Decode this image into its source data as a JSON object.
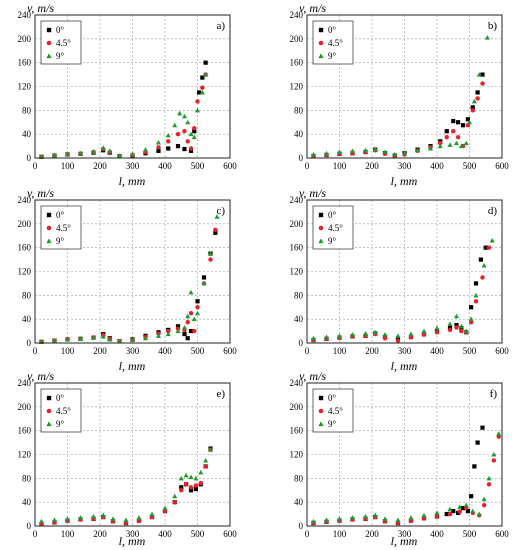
{
  "figure": {
    "panels": [
      {
        "letter": "a)",
        "ylabel": "v, m/s",
        "xlabel": "l, mm"
      },
      {
        "letter": "b)",
        "ylabel": "v, m/s",
        "xlabel": "l, mm"
      },
      {
        "letter": "c)",
        "ylabel": "v, m/s",
        "xlabel": "l, mm"
      },
      {
        "letter": "d)",
        "ylabel": "v, m/s",
        "xlabel": "l, mm"
      },
      {
        "letter": "e)",
        "ylabel": "v, m/s",
        "xlabel": "l, mm"
      },
      {
        "letter": "f)",
        "ylabel": "v, m/s",
        "xlabel": "l, mm"
      }
    ]
  },
  "chart_data": [
    {
      "type": "scatter",
      "panel": "a)",
      "xlabel": "l, mm",
      "ylabel": "v, m/s",
      "xlim": [
        0,
        600
      ],
      "ylim": [
        0,
        240
      ],
      "xticks": [
        0,
        100,
        200,
        300,
        400,
        500,
        600
      ],
      "yticks": [
        0,
        40,
        80,
        120,
        160,
        200,
        240
      ],
      "grid": true,
      "legend_position": "top-left",
      "series": [
        {
          "name": "0°",
          "color": "#000000",
          "marker": "square",
          "x": [
            20,
            60,
            100,
            140,
            180,
            210,
            230,
            260,
            300,
            340,
            380,
            410,
            440,
            460,
            480,
            490,
            505,
            515,
            525
          ],
          "y": [
            2,
            4,
            6,
            7,
            9,
            13,
            9,
            3,
            4,
            8,
            12,
            16,
            20,
            15,
            12,
            45,
            110,
            135,
            160
          ]
        },
        {
          "name": "4.5°",
          "color": "#e8202a",
          "marker": "circle",
          "x": [
            20,
            60,
            100,
            140,
            180,
            210,
            230,
            260,
            300,
            340,
            380,
            410,
            440,
            460,
            470,
            480,
            490,
            500,
            515,
            525
          ],
          "y": [
            2,
            4,
            6,
            7,
            10,
            15,
            10,
            3,
            5,
            10,
            18,
            28,
            40,
            45,
            28,
            16,
            50,
            95,
            118,
            140
          ]
        },
        {
          "name": "9°",
          "color": "#1e9a2e",
          "marker": "triangle",
          "x": [
            20,
            60,
            100,
            140,
            180,
            210,
            230,
            260,
            300,
            340,
            380,
            410,
            430,
            445,
            460,
            470,
            480,
            490,
            500,
            515,
            525
          ],
          "y": [
            2,
            5,
            7,
            8,
            11,
            17,
            12,
            4,
            7,
            14,
            26,
            38,
            55,
            75,
            70,
            60,
            40,
            35,
            80,
            110,
            140
          ]
        }
      ]
    },
    {
      "type": "scatter",
      "panel": "b)",
      "xlabel": "l, mm",
      "ylabel": "v, m/s",
      "xlim": [
        0,
        600
      ],
      "ylim": [
        0,
        240
      ],
      "xticks": [
        0,
        100,
        200,
        300,
        400,
        500,
        600
      ],
      "yticks": [
        0,
        40,
        80,
        120,
        160,
        200,
        240
      ],
      "grid": true,
      "legend_position": "top-left",
      "series": [
        {
          "name": "0°",
          "color": "#000000",
          "marker": "square",
          "x": [
            20,
            60,
            100,
            140,
            180,
            210,
            240,
            270,
            300,
            340,
            380,
            410,
            430,
            450,
            465,
            480,
            495,
            510,
            525,
            540
          ],
          "y": [
            3,
            5,
            7,
            8,
            10,
            14,
            8,
            4,
            8,
            14,
            20,
            28,
            45,
            62,
            60,
            55,
            65,
            85,
            110,
            140
          ]
        },
        {
          "name": "4.5°",
          "color": "#e8202a",
          "marker": "circle",
          "x": [
            20,
            60,
            100,
            140,
            180,
            210,
            240,
            270,
            300,
            340,
            380,
            410,
            430,
            450,
            465,
            480,
            495,
            510,
            525,
            540
          ],
          "y": [
            3,
            5,
            7,
            8,
            10,
            13,
            7,
            3,
            6,
            12,
            18,
            25,
            35,
            45,
            35,
            20,
            55,
            80,
            100,
            125
          ]
        },
        {
          "name": "9°",
          "color": "#1e9a2e",
          "marker": "triangle",
          "x": [
            20,
            60,
            100,
            140,
            180,
            210,
            240,
            270,
            300,
            340,
            380,
            410,
            440,
            460,
            475,
            490,
            500,
            515,
            530,
            555
          ],
          "y": [
            6,
            8,
            10,
            12,
            13,
            15,
            10,
            6,
            9,
            13,
            16,
            20,
            22,
            25,
            20,
            25,
            60,
            95,
            140,
            202
          ]
        }
      ]
    },
    {
      "type": "scatter",
      "panel": "c)",
      "xlabel": "l, mm",
      "ylabel": "v, m/s",
      "xlim": [
        0,
        600
      ],
      "ylim": [
        0,
        240
      ],
      "xticks": [
        0,
        100,
        200,
        300,
        400,
        500,
        600
      ],
      "yticks": [
        0,
        40,
        80,
        120,
        160,
        200,
        240
      ],
      "grid": true,
      "legend_position": "top-left",
      "series": [
        {
          "name": "0°",
          "color": "#000000",
          "marker": "square",
          "x": [
            20,
            60,
            100,
            140,
            180,
            210,
            230,
            260,
            300,
            340,
            380,
            410,
            440,
            460,
            470,
            480,
            500,
            520,
            540,
            555
          ],
          "y": [
            2,
            4,
            6,
            7,
            9,
            15,
            8,
            3,
            6,
            12,
            18,
            22,
            28,
            15,
            8,
            20,
            70,
            110,
            150,
            185
          ]
        },
        {
          "name": "4.5°",
          "color": "#e8202a",
          "marker": "circle",
          "x": [
            20,
            60,
            100,
            140,
            180,
            210,
            230,
            260,
            300,
            340,
            380,
            410,
            440,
            460,
            470,
            480,
            490,
            500,
            520,
            540,
            555
          ],
          "y": [
            2,
            4,
            6,
            7,
            9,
            13,
            7,
            3,
            5,
            10,
            16,
            20,
            24,
            22,
            35,
            50,
            20,
            60,
            100,
            140,
            190
          ]
        },
        {
          "name": "9°",
          "color": "#1e9a2e",
          "marker": "triangle",
          "x": [
            20,
            60,
            100,
            140,
            180,
            210,
            230,
            260,
            300,
            340,
            380,
            410,
            440,
            460,
            470,
            480,
            490,
            500,
            520,
            540,
            560
          ],
          "y": [
            2,
            4,
            6,
            7,
            9,
            11,
            6,
            3,
            5,
            8,
            12,
            15,
            20,
            26,
            45,
            85,
            40,
            50,
            100,
            150,
            212
          ]
        }
      ]
    },
    {
      "type": "scatter",
      "panel": "d)",
      "xlabel": "l, mm",
      "ylabel": "v, m/s",
      "xlim": [
        0,
        600
      ],
      "ylim": [
        0,
        240
      ],
      "xticks": [
        0,
        100,
        200,
        300,
        400,
        500,
        600
      ],
      "yticks": [
        0,
        40,
        80,
        120,
        160,
        200,
        240
      ],
      "grid": true,
      "legend_position": "top-left",
      "series": [
        {
          "name": "0°",
          "color": "#000000",
          "marker": "square",
          "x": [
            20,
            60,
            100,
            140,
            180,
            210,
            240,
            280,
            320,
            360,
            400,
            440,
            460,
            475,
            490,
            505,
            520,
            535,
            550
          ],
          "y": [
            5,
            7,
            9,
            11,
            12,
            16,
            10,
            6,
            10,
            15,
            20,
            25,
            30,
            25,
            18,
            60,
            100,
            140,
            160
          ]
        },
        {
          "name": "4.5°",
          "color": "#e8202a",
          "marker": "circle",
          "x": [
            20,
            60,
            100,
            140,
            180,
            210,
            240,
            280,
            320,
            360,
            400,
            440,
            460,
            475,
            490,
            505,
            520,
            540,
            560
          ],
          "y": [
            5,
            7,
            9,
            11,
            12,
            15,
            8,
            4,
            10,
            14,
            18,
            22,
            26,
            20,
            18,
            35,
            70,
            110,
            160
          ]
        },
        {
          "name": "9°",
          "color": "#1e9a2e",
          "marker": "triangle",
          "x": [
            20,
            60,
            100,
            140,
            180,
            210,
            240,
            280,
            320,
            360,
            400,
            440,
            460,
            475,
            490,
            505,
            520,
            545,
            570
          ],
          "y": [
            8,
            10,
            12,
            14,
            16,
            18,
            14,
            12,
            15,
            20,
            25,
            32,
            45,
            28,
            20,
            40,
            80,
            130,
            172
          ]
        }
      ]
    },
    {
      "type": "scatter",
      "panel": "e)",
      "xlabel": "l, mm",
      "ylabel": "v, m/s",
      "xlim": [
        0,
        600
      ],
      "ylim": [
        0,
        240
      ],
      "xticks": [
        0,
        100,
        200,
        300,
        400,
        500,
        600
      ],
      "yticks": [
        0,
        40,
        80,
        120,
        160,
        200,
        240
      ],
      "grid": true,
      "legend_position": "top-left",
      "series": [
        {
          "name": "0°",
          "color": "#000000",
          "marker": "square",
          "x": [
            20,
            60,
            100,
            140,
            180,
            210,
            240,
            280,
            320,
            360,
            400,
            430,
            450,
            465,
            480,
            495,
            510,
            525,
            540
          ],
          "y": [
            3,
            6,
            9,
            11,
            12,
            15,
            8,
            5,
            9,
            15,
            25,
            40,
            65,
            70,
            60,
            62,
            70,
            100,
            130
          ]
        },
        {
          "name": "4.5°",
          "color": "#e8202a",
          "marker": "circle",
          "x": [
            20,
            60,
            100,
            140,
            180,
            210,
            240,
            280,
            320,
            360,
            400,
            430,
            450,
            465,
            480,
            495,
            510,
            525,
            540
          ],
          "y": [
            3,
            6,
            9,
            11,
            12,
            15,
            8,
            5,
            9,
            15,
            25,
            40,
            60,
            70,
            65,
            68,
            72,
            100,
            128
          ]
        },
        {
          "name": "9°",
          "color": "#1e9a2e",
          "marker": "triangle",
          "x": [
            20,
            60,
            100,
            140,
            180,
            210,
            240,
            280,
            320,
            360,
            400,
            430,
            450,
            465,
            480,
            495,
            510,
            525,
            540
          ],
          "y": [
            8,
            10,
            12,
            14,
            16,
            18,
            12,
            10,
            14,
            20,
            30,
            50,
            80,
            85,
            82,
            80,
            90,
            110,
            128
          ]
        }
      ]
    },
    {
      "type": "scatter",
      "panel": "f)",
      "xlabel": "l, mm",
      "ylabel": "v, m/s",
      "xlim": [
        0,
        600
      ],
      "ylim": [
        0,
        240
      ],
      "xticks": [
        0,
        100,
        200,
        300,
        400,
        500,
        600
      ],
      "yticks": [
        0,
        40,
        80,
        120,
        160,
        200,
        240
      ],
      "grid": true,
      "legend_position": "top-left",
      "series": [
        {
          "name": "0°",
          "color": "#000000",
          "marker": "square",
          "x": [
            20,
            60,
            100,
            140,
            180,
            210,
            240,
            280,
            320,
            360,
            400,
            430,
            450,
            465,
            480,
            495,
            505,
            515,
            525,
            540
          ],
          "y": [
            5,
            7,
            9,
            11,
            12,
            15,
            8,
            5,
            9,
            13,
            16,
            20,
            25,
            22,
            30,
            25,
            50,
            100,
            140,
            165
          ]
        },
        {
          "name": "4.5°",
          "color": "#e8202a",
          "marker": "circle",
          "x": [
            20,
            60,
            100,
            140,
            180,
            210,
            240,
            280,
            320,
            360,
            400,
            440,
            470,
            490,
            510,
            530,
            545,
            560,
            575,
            590
          ],
          "y": [
            5,
            7,
            9,
            11,
            12,
            15,
            8,
            5,
            9,
            13,
            16,
            20,
            24,
            30,
            22,
            18,
            35,
            70,
            110,
            150
          ]
        },
        {
          "name": "9°",
          "color": "#1e9a2e",
          "marker": "triangle",
          "x": [
            20,
            60,
            100,
            140,
            180,
            210,
            240,
            280,
            320,
            360,
            400,
            440,
            470,
            490,
            510,
            530,
            545,
            560,
            575,
            590
          ],
          "y": [
            8,
            10,
            12,
            14,
            16,
            18,
            12,
            10,
            14,
            18,
            22,
            28,
            32,
            35,
            25,
            20,
            45,
            80,
            120,
            155
          ]
        }
      ]
    }
  ]
}
